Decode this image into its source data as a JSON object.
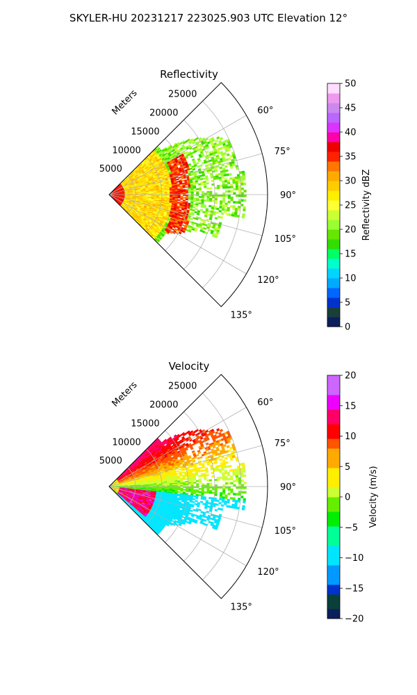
{
  "suptitle": "SKYLER-HU  20231217  223025.903 UTC Elevation 12°",
  "chart_data": [
    {
      "type": "heatmap",
      "title": "Reflectivity",
      "projection": "polar sector",
      "radial_label": "Meters",
      "range_ticks": [
        5000,
        10000,
        15000,
        20000,
        25000
      ],
      "rmax": 30000,
      "azimuth_ticks_deg": [
        60,
        75,
        90,
        105,
        120,
        135
      ],
      "azimuth_tick_labels": [
        "60°",
        "75°",
        "90°",
        "105°",
        "120°",
        "135°"
      ],
      "azimuth_range_deg": [
        45,
        135
      ],
      "grid": true,
      "colorbar": {
        "label": "Reflectivity dBZ",
        "min": 0,
        "max": 50,
        "ticks": [
          0,
          5,
          10,
          15,
          20,
          25,
          30,
          35,
          40,
          45,
          50
        ],
        "tick_labels": [
          "0",
          "5",
          "10",
          "15",
          "20",
          "25",
          "30",
          "35",
          "40",
          "45",
          "50"
        ]
      },
      "field_features": [
        {
          "region": "near range, all azimuths",
          "value_range": [
            25,
            30
          ]
        },
        {
          "region": "arc band ~12000-16000 m, az 65-115",
          "value_range": [
            33,
            38
          ]
        },
        {
          "region": "outer echo 18000-27000 m",
          "value_range": [
            18,
            22
          ]
        }
      ]
    },
    {
      "type": "heatmap",
      "title": "Velocity",
      "projection": "polar sector",
      "radial_label": "Meters",
      "range_ticks": [
        5000,
        10000,
        15000,
        20000,
        25000
      ],
      "rmax": 30000,
      "azimuth_ticks_deg": [
        60,
        75,
        90,
        105,
        120,
        135
      ],
      "azimuth_tick_labels": [
        "60°",
        "75°",
        "90°",
        "105°",
        "120°",
        "135°"
      ],
      "azimuth_range_deg": [
        45,
        135
      ],
      "grid": true,
      "colorbar": {
        "label": "Velocity (m/s)",
        "min": -20,
        "max": 20,
        "ticks": [
          -20,
          -15,
          -10,
          -5,
          0,
          5,
          10,
          15,
          20
        ],
        "tick_labels": [
          "−20",
          "−15",
          "−10",
          "−5",
          "0",
          "5",
          "10",
          "15",
          "20"
        ]
      },
      "field_features": [
        {
          "region": "north-east sector az 50-75",
          "value_range": [
            8,
            12
          ]
        },
        {
          "region": "east sector az 80-95",
          "value_range": [
            -5,
            2
          ]
        },
        {
          "region": "south-east sector az 95-130",
          "value_range": [
            -13,
            -8
          ]
        },
        {
          "region": "near range az 100-130",
          "value_range": [
            10,
            17
          ]
        }
      ]
    }
  ]
}
